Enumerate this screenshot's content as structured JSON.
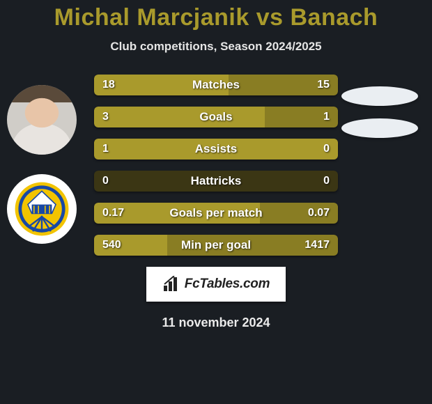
{
  "title_color": "#a99a2c",
  "title_parts": {
    "p1": "Michal Marcjanik",
    "vs": " vs ",
    "p2": "Banach"
  },
  "subtitle": "Club competitions, Season 2024/2025",
  "bar_color_left": "#a99a2c",
  "bar_color_right": "#897d23",
  "bar_bg": "#3b3614",
  "ellipse_color": "#eaeef2",
  "stats": [
    {
      "label": "Matches",
      "l": "18",
      "r": "15",
      "lw": 55,
      "rw": 45
    },
    {
      "label": "Goals",
      "l": "3",
      "r": "1",
      "lw": 70,
      "rw": 30
    },
    {
      "label": "Assists",
      "l": "1",
      "r": "0",
      "lw": 100,
      "rw": 0
    },
    {
      "label": "Hattricks",
      "l": "0",
      "r": "0",
      "lw": 0,
      "rw": 0
    },
    {
      "label": "Goals per match",
      "l": "0.17",
      "r": "0.07",
      "lw": 68,
      "rw": 32
    },
    {
      "label": "Min per goal",
      "l": "540",
      "r": "1417",
      "lw": 30,
      "rw": 70
    }
  ],
  "footer_brand": "FcTables.com",
  "date": "11 november 2024",
  "avatar_face_bg": "#d0cdc8",
  "club_badge_colors": {
    "blue": "#1848a5",
    "yellow": "#f2c400",
    "white": "#ffffff"
  }
}
